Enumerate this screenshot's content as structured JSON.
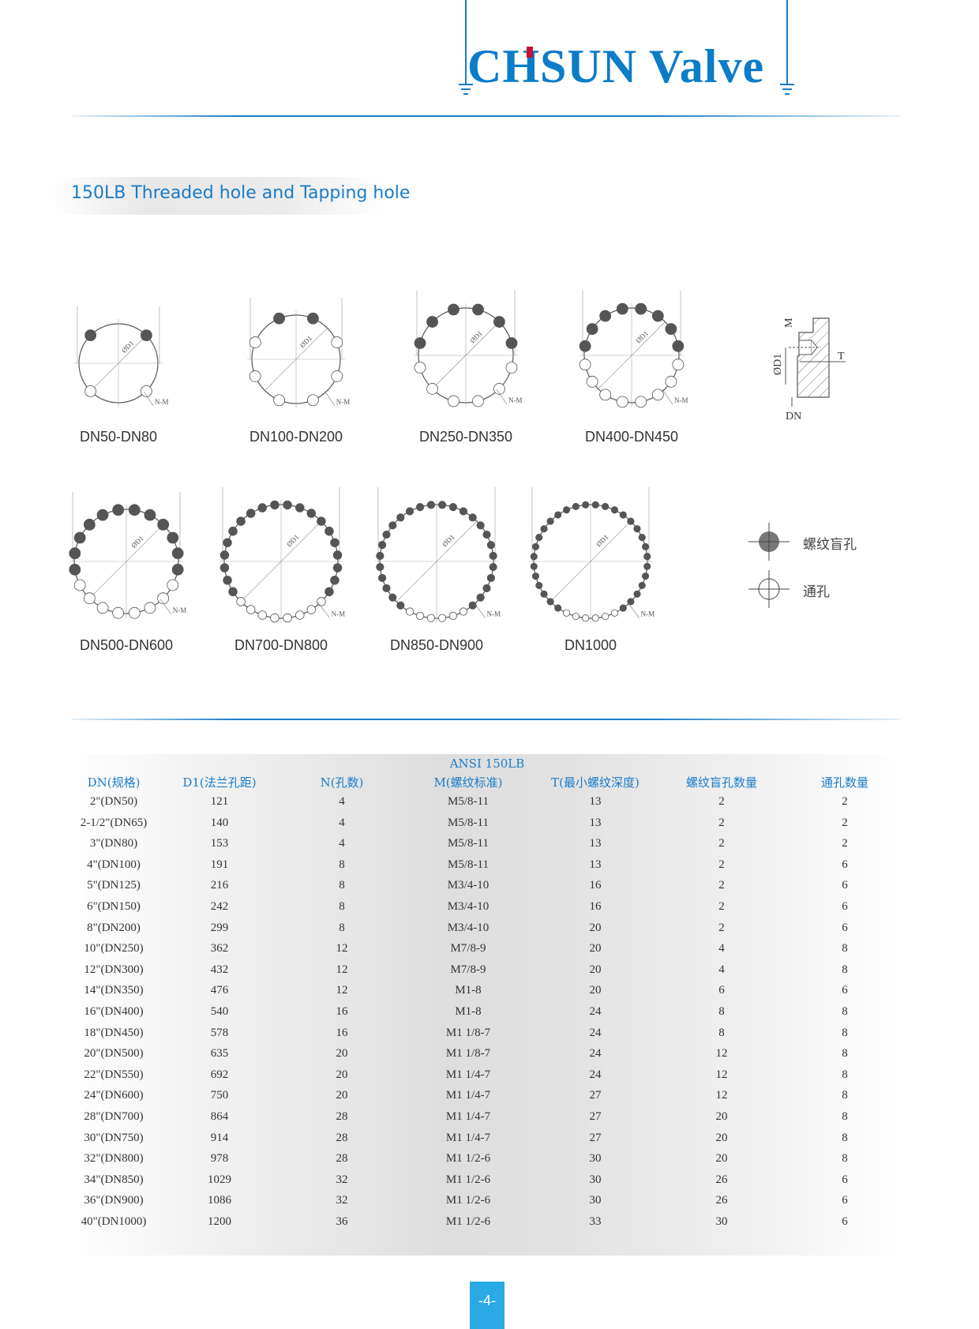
{
  "header": {
    "logo_text": "CHSUN Valve",
    "brand_color": "#0a7cc8",
    "accent_color": "#c8102e"
  },
  "section": {
    "title": "150LB Threaded hole and Tapping hole"
  },
  "diagrams": [
    {
      "label": "DN50-DN80",
      "holes": 4,
      "blind": 2,
      "d1_label": "ØD1",
      "nm_label": "N-M"
    },
    {
      "label": "DN100-DN200",
      "holes": 8,
      "blind": 2,
      "d1_label": "ØD1",
      "nm_label": "N-M"
    },
    {
      "label": "DN250-DN350",
      "holes": 12,
      "blind": 6,
      "d1_label": "ØD1",
      "nm_label": "N-M"
    },
    {
      "label": "DN400-DN450",
      "holes": 16,
      "blind": 8,
      "d1_label": "ØD1",
      "nm_label": "N-M"
    },
    {
      "label": "DN500-DN600",
      "holes": 20,
      "blind": 12,
      "d1_label": "ØD1",
      "nm_label": "N-M"
    },
    {
      "label": "DN700-DN800",
      "holes": 28,
      "blind": 20,
      "d1_label": "ØD1",
      "nm_label": "N-M"
    },
    {
      "label": "DN850-DN900",
      "holes": 32,
      "blind": 26,
      "d1_label": "ØD1",
      "nm_label": "N-M"
    },
    {
      "label": "DN1000",
      "holes": 36,
      "blind": 30,
      "d1_label": "ØD1",
      "nm_label": "N-M"
    }
  ],
  "section_detail": {
    "m": "M",
    "d1": "ØD1",
    "t": "T",
    "dn": "DN"
  },
  "legend": {
    "blind": "螺纹盲孔",
    "through": "通孔"
  },
  "table": {
    "super_header": "ANSI 150LB",
    "headers": [
      "DN(规格)",
      "D1(法兰孔距)",
      "N(孔数)",
      "M(螺纹标准)",
      "T(最小螺纹深度)",
      "螺纹盲孔数量",
      "通孔数量"
    ],
    "rows": [
      [
        "2\"(DN50)",
        "121",
        "4",
        "M5/8-11",
        "13",
        "2",
        "2"
      ],
      [
        "2-1/2\"(DN65)",
        "140",
        "4",
        "M5/8-11",
        "13",
        "2",
        "2"
      ],
      [
        "3\"(DN80)",
        "153",
        "4",
        "M5/8-11",
        "13",
        "2",
        "2"
      ],
      [
        "4\"(DN100)",
        "191",
        "8",
        "M5/8-11",
        "13",
        "2",
        "6"
      ],
      [
        "5\"(DN125)",
        "216",
        "8",
        "M3/4-10",
        "16",
        "2",
        "6"
      ],
      [
        "6\"(DN150)",
        "242",
        "8",
        "M3/4-10",
        "16",
        "2",
        "6"
      ],
      [
        "8\"(DN200)",
        "299",
        "8",
        "M3/4-10",
        "20",
        "2",
        "6"
      ],
      [
        "10\"(DN250)",
        "362",
        "12",
        "M7/8-9",
        "20",
        "4",
        "8"
      ],
      [
        "12\"(DN300)",
        "432",
        "12",
        "M7/8-9",
        "20",
        "4",
        "8"
      ],
      [
        "14\"(DN350)",
        "476",
        "12",
        "M1-8",
        "20",
        "6",
        "6"
      ],
      [
        "16\"(DN400)",
        "540",
        "16",
        "M1-8",
        "24",
        "8",
        "8"
      ],
      [
        "18\"(DN450)",
        "578",
        "16",
        "M1 1/8-7",
        "24",
        "8",
        "8"
      ],
      [
        "20\"(DN500)",
        "635",
        "20",
        "M1 1/8-7",
        "24",
        "12",
        "8"
      ],
      [
        "22\"(DN550)",
        "692",
        "20",
        "M1 1/4-7",
        "24",
        "12",
        "8"
      ],
      [
        "24\"(DN600)",
        "750",
        "20",
        "M1 1/4-7",
        "27",
        "12",
        "8"
      ],
      [
        "28\"(DN700)",
        "864",
        "28",
        "M1 1/4-7",
        "27",
        "20",
        "8"
      ],
      [
        "30\"(DN750)",
        "914",
        "28",
        "M1 1/4-7",
        "27",
        "20",
        "8"
      ],
      [
        "32\"(DN800)",
        "978",
        "28",
        "M1 1/2-6",
        "30",
        "20",
        "8"
      ],
      [
        "34\"(DN850)",
        "1029",
        "32",
        "M1 1/2-6",
        "30",
        "26",
        "6"
      ],
      [
        "36\"(DN900)",
        "1086",
        "32",
        "M1 1/2-6",
        "30",
        "26",
        "6"
      ],
      [
        "40\"(DN1000)",
        "1200",
        "36",
        "M1 1/2-6",
        "33",
        "30",
        "6"
      ]
    ]
  },
  "footer": {
    "page_number": "-4-"
  }
}
